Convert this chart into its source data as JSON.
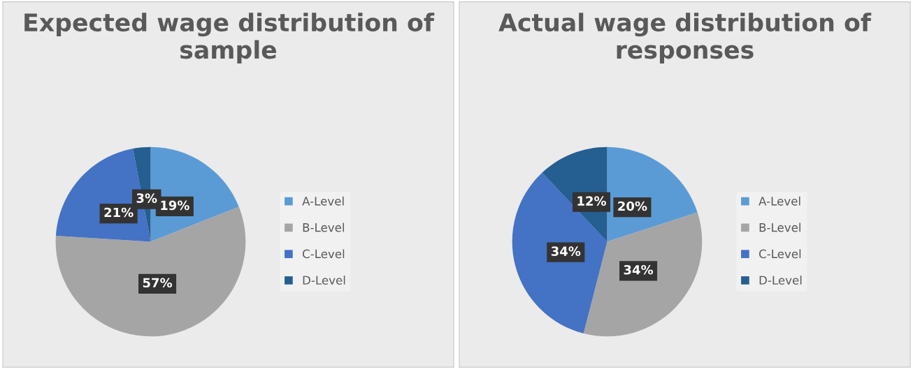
{
  "chart_data": [
    {
      "type": "pie",
      "title": "Expected wage distribution of sample",
      "categories": [
        "A-Level",
        "B-Level",
        "C-Level",
        "D-Level"
      ],
      "values": [
        19,
        57,
        21,
        3
      ],
      "value_labels": [
        "19%",
        "57%",
        "21%",
        "3%"
      ],
      "colors": [
        "#5b9bd5",
        "#a5a5a5",
        "#4472c4",
        "#255e91"
      ],
      "legend": "right"
    },
    {
      "type": "pie",
      "title": "Actual wage distribution of responses",
      "categories": [
        "A-Level",
        "B-Level",
        "C-Level",
        "D-Level"
      ],
      "values": [
        20,
        34,
        34,
        12
      ],
      "value_labels": [
        "20%",
        "34%",
        "34%",
        "12%"
      ],
      "colors": [
        "#5b9bd5",
        "#a5a5a5",
        "#4472c4",
        "#255e91"
      ],
      "legend": "right"
    }
  ]
}
